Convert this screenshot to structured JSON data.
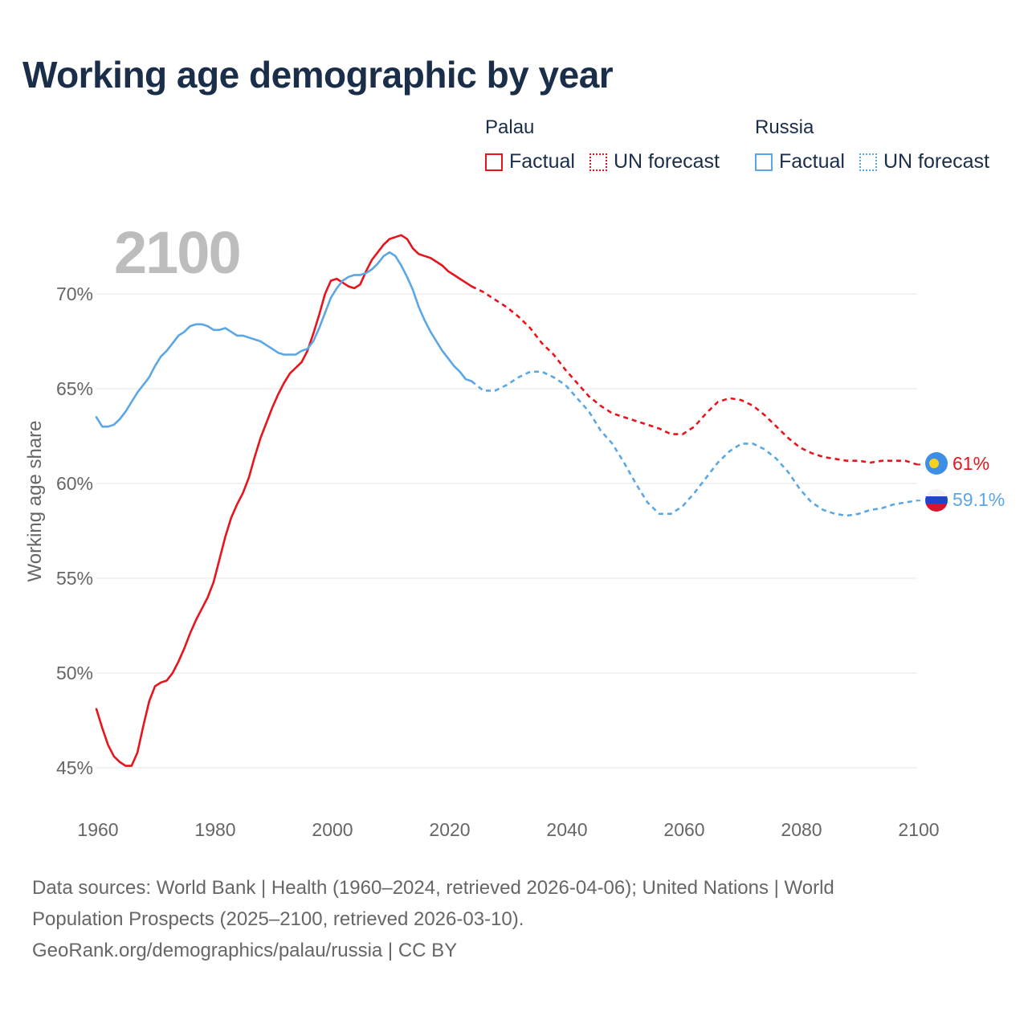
{
  "title": "Working age demographic by year",
  "year_watermark": "2100",
  "legend": {
    "groups": [
      {
        "country": "Palau",
        "factual_label": "Factual",
        "forecast_label": "UN forecast",
        "color": "#e8141c"
      },
      {
        "country": "Russia",
        "factual_label": "Factual",
        "forecast_label": "UN forecast",
        "color": "#5ba7e6"
      }
    ]
  },
  "end_labels": {
    "palau": "61%",
    "russia": "59.1%"
  },
  "footer": {
    "line1": "Data sources: World Bank | Health (1960–2024, retrieved 2026-04-06); United Nations | World",
    "line2": "Population Prospects (2025–2100, retrieved 2026-03-10).",
    "line3": "GeoRank.org/demographics/palau/russia | CC BY"
  },
  "chart_data": {
    "type": "line",
    "title": "Working age demographic by year",
    "xlabel": "",
    "ylabel": "Working age share",
    "xlim": [
      1960,
      2100
    ],
    "ylim": [
      44,
      72.5
    ],
    "x_ticks": [
      1960,
      1980,
      2000,
      2020,
      2040,
      2060,
      2080,
      2100
    ],
    "x_tick_labels": [
      "1960",
      "1980",
      "2000",
      "2020",
      "2040",
      "2060",
      "2080",
      "2100"
    ],
    "y_ticks": [
      45,
      50,
      55,
      60,
      65,
      70
    ],
    "y_tick_labels": [
      "45%",
      "50%",
      "55%",
      "60%",
      "65%",
      "70%"
    ],
    "grid": "horizontal",
    "forecast_start": 2024,
    "series": [
      {
        "name": "Palau",
        "color": "#e8141c",
        "points": [
          [
            1960,
            48.1
          ],
          [
            1961,
            47.1
          ],
          [
            1962,
            46.2
          ],
          [
            1963,
            45.6
          ],
          [
            1964,
            45.3
          ],
          [
            1965,
            45.1
          ],
          [
            1966,
            45.1
          ],
          [
            1967,
            45.8
          ],
          [
            1968,
            47.2
          ],
          [
            1969,
            48.5
          ],
          [
            1970,
            49.3
          ],
          [
            1971,
            49.5
          ],
          [
            1972,
            49.6
          ],
          [
            1973,
            50.0
          ],
          [
            1974,
            50.6
          ],
          [
            1975,
            51.3
          ],
          [
            1976,
            52.1
          ],
          [
            1977,
            52.8
          ],
          [
            1978,
            53.4
          ],
          [
            1979,
            54.0
          ],
          [
            1980,
            54.8
          ],
          [
            1981,
            56.0
          ],
          [
            1982,
            57.2
          ],
          [
            1983,
            58.2
          ],
          [
            1984,
            58.9
          ],
          [
            1985,
            59.5
          ],
          [
            1986,
            60.3
          ],
          [
            1987,
            61.4
          ],
          [
            1988,
            62.4
          ],
          [
            1989,
            63.2
          ],
          [
            1990,
            64.0
          ],
          [
            1991,
            64.7
          ],
          [
            1992,
            65.3
          ],
          [
            1993,
            65.8
          ],
          [
            1994,
            66.1
          ],
          [
            1995,
            66.4
          ],
          [
            1996,
            67.0
          ],
          [
            1997,
            67.9
          ],
          [
            1998,
            68.9
          ],
          [
            1999,
            70.0
          ],
          [
            2000,
            70.7
          ],
          [
            2001,
            70.8
          ],
          [
            2002,
            70.6
          ],
          [
            2003,
            70.4
          ],
          [
            2004,
            70.3
          ],
          [
            2005,
            70.5
          ],
          [
            2006,
            71.2
          ],
          [
            2007,
            71.8
          ],
          [
            2008,
            72.2
          ],
          [
            2009,
            72.6
          ],
          [
            2010,
            72.9
          ],
          [
            2011,
            73.0
          ],
          [
            2012,
            73.1
          ],
          [
            2013,
            72.9
          ],
          [
            2014,
            72.4
          ],
          [
            2015,
            72.1
          ],
          [
            2016,
            72.0
          ],
          [
            2017,
            71.9
          ],
          [
            2018,
            71.7
          ],
          [
            2019,
            71.5
          ],
          [
            2020,
            71.2
          ],
          [
            2021,
            71.0
          ],
          [
            2022,
            70.8
          ],
          [
            2023,
            70.6
          ],
          [
            2024,
            70.4
          ],
          [
            2026,
            70.1
          ],
          [
            2028,
            69.7
          ],
          [
            2030,
            69.3
          ],
          [
            2032,
            68.8
          ],
          [
            2034,
            68.2
          ],
          [
            2036,
            67.4
          ],
          [
            2038,
            66.8
          ],
          [
            2040,
            66.0
          ],
          [
            2042,
            65.3
          ],
          [
            2044,
            64.6
          ],
          [
            2046,
            64.1
          ],
          [
            2048,
            63.7
          ],
          [
            2050,
            63.5
          ],
          [
            2052,
            63.3
          ],
          [
            2054,
            63.1
          ],
          [
            2056,
            62.9
          ],
          [
            2058,
            62.6
          ],
          [
            2060,
            62.6
          ],
          [
            2062,
            63.0
          ],
          [
            2064,
            63.7
          ],
          [
            2066,
            64.3
          ],
          [
            2068,
            64.5
          ],
          [
            2070,
            64.4
          ],
          [
            2072,
            64.1
          ],
          [
            2074,
            63.6
          ],
          [
            2076,
            63.0
          ],
          [
            2078,
            62.4
          ],
          [
            2080,
            61.9
          ],
          [
            2082,
            61.6
          ],
          [
            2084,
            61.4
          ],
          [
            2086,
            61.3
          ],
          [
            2088,
            61.2
          ],
          [
            2090,
            61.2
          ],
          [
            2092,
            61.1
          ],
          [
            2094,
            61.2
          ],
          [
            2096,
            61.2
          ],
          [
            2098,
            61.2
          ],
          [
            2100,
            61.0
          ]
        ]
      },
      {
        "name": "Russia",
        "color": "#5ba7e6",
        "points": [
          [
            1960,
            63.5
          ],
          [
            1961,
            63.0
          ],
          [
            1962,
            63.0
          ],
          [
            1963,
            63.1
          ],
          [
            1964,
            63.4
          ],
          [
            1965,
            63.8
          ],
          [
            1966,
            64.3
          ],
          [
            1967,
            64.8
          ],
          [
            1968,
            65.2
          ],
          [
            1969,
            65.6
          ],
          [
            1970,
            66.2
          ],
          [
            1971,
            66.7
          ],
          [
            1972,
            67.0
          ],
          [
            1973,
            67.4
          ],
          [
            1974,
            67.8
          ],
          [
            1975,
            68.0
          ],
          [
            1976,
            68.3
          ],
          [
            1977,
            68.4
          ],
          [
            1978,
            68.4
          ],
          [
            1979,
            68.3
          ],
          [
            1980,
            68.1
          ],
          [
            1981,
            68.1
          ],
          [
            1982,
            68.2
          ],
          [
            1983,
            68.0
          ],
          [
            1984,
            67.8
          ],
          [
            1985,
            67.8
          ],
          [
            1986,
            67.7
          ],
          [
            1987,
            67.6
          ],
          [
            1988,
            67.5
          ],
          [
            1989,
            67.3
          ],
          [
            1990,
            67.1
          ],
          [
            1991,
            66.9
          ],
          [
            1992,
            66.8
          ],
          [
            1993,
            66.8
          ],
          [
            1994,
            66.8
          ],
          [
            1995,
            67.0
          ],
          [
            1996,
            67.1
          ],
          [
            1997,
            67.5
          ],
          [
            1998,
            68.2
          ],
          [
            1999,
            69.0
          ],
          [
            2000,
            69.8
          ],
          [
            2001,
            70.3
          ],
          [
            2002,
            70.7
          ],
          [
            2003,
            70.9
          ],
          [
            2004,
            71.0
          ],
          [
            2005,
            71.0
          ],
          [
            2006,
            71.1
          ],
          [
            2007,
            71.3
          ],
          [
            2008,
            71.6
          ],
          [
            2009,
            72.0
          ],
          [
            2010,
            72.2
          ],
          [
            2011,
            72.0
          ],
          [
            2012,
            71.5
          ],
          [
            2013,
            70.9
          ],
          [
            2014,
            70.2
          ],
          [
            2015,
            69.3
          ],
          [
            2016,
            68.6
          ],
          [
            2017,
            68.0
          ],
          [
            2018,
            67.5
          ],
          [
            2019,
            67.0
          ],
          [
            2020,
            66.6
          ],
          [
            2021,
            66.2
          ],
          [
            2022,
            65.9
          ],
          [
            2023,
            65.5
          ],
          [
            2024,
            65.4
          ],
          [
            2026,
            64.9
          ],
          [
            2028,
            64.9
          ],
          [
            2030,
            65.2
          ],
          [
            2032,
            65.6
          ],
          [
            2034,
            65.9
          ],
          [
            2036,
            65.9
          ],
          [
            2038,
            65.6
          ],
          [
            2040,
            65.2
          ],
          [
            2042,
            64.5
          ],
          [
            2044,
            63.8
          ],
          [
            2046,
            62.8
          ],
          [
            2048,
            62.1
          ],
          [
            2050,
            61.1
          ],
          [
            2052,
            60.0
          ],
          [
            2054,
            59.0
          ],
          [
            2056,
            58.4
          ],
          [
            2058,
            58.4
          ],
          [
            2060,
            58.8
          ],
          [
            2062,
            59.5
          ],
          [
            2064,
            60.3
          ],
          [
            2066,
            61.1
          ],
          [
            2068,
            61.7
          ],
          [
            2070,
            62.1
          ],
          [
            2072,
            62.1
          ],
          [
            2074,
            61.8
          ],
          [
            2076,
            61.3
          ],
          [
            2078,
            60.6
          ],
          [
            2080,
            59.7
          ],
          [
            2082,
            59.0
          ],
          [
            2084,
            58.6
          ],
          [
            2086,
            58.4
          ],
          [
            2088,
            58.3
          ],
          [
            2090,
            58.4
          ],
          [
            2092,
            58.6
          ],
          [
            2094,
            58.7
          ],
          [
            2096,
            58.9
          ],
          [
            2098,
            59.0
          ],
          [
            2100,
            59.1
          ]
        ]
      }
    ]
  }
}
